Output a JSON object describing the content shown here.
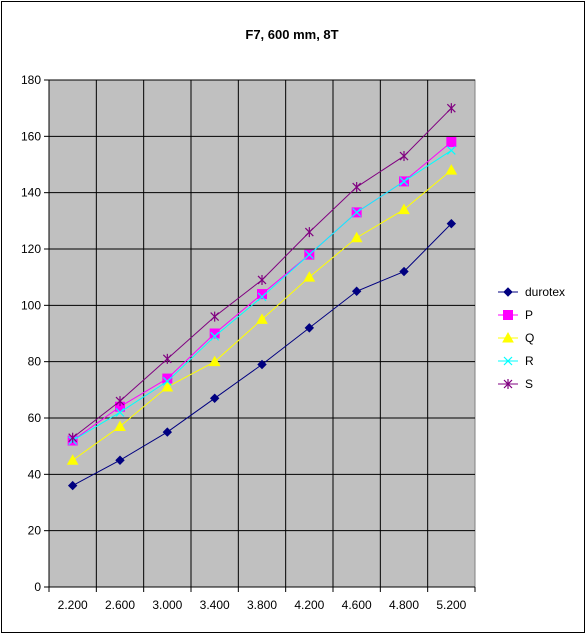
{
  "chart_data": {
    "type": "line",
    "title": "F7, 600 mm, 8T",
    "categories": [
      "2.200",
      "2.600",
      "3.000",
      "3.400",
      "3.800",
      "4.200",
      "4.600",
      "4.800",
      "5.200"
    ],
    "yticks": [
      "0",
      "20",
      "40",
      "60",
      "80",
      "100",
      "120",
      "140",
      "160",
      "180"
    ],
    "ylim": [
      0,
      180
    ],
    "grid": true,
    "legend_position": "right",
    "plot_background": "#c0c0c0",
    "series": [
      {
        "name": "durotex",
        "color": "#000080",
        "marker": "diamond",
        "values": [
          36,
          45,
          55,
          67,
          79,
          92,
          105,
          112,
          129
        ]
      },
      {
        "name": "P",
        "color": "#ff00ff",
        "marker": "square",
        "values": [
          52,
          64,
          74,
          90,
          104,
          118,
          133,
          144,
          158
        ]
      },
      {
        "name": "Q",
        "color": "#ffff00",
        "marker": "triangle",
        "values": [
          45,
          57,
          71,
          80,
          95,
          110,
          124,
          134,
          148
        ]
      },
      {
        "name": "R",
        "color": "#00ffff",
        "marker": "x",
        "values": [
          52,
          62,
          73,
          89,
          103,
          118,
          133,
          144,
          155
        ]
      },
      {
        "name": "S",
        "color": "#800080",
        "marker": "asterisk",
        "values": [
          53,
          66,
          81,
          96,
          109,
          126,
          142,
          153,
          170
        ]
      }
    ]
  }
}
